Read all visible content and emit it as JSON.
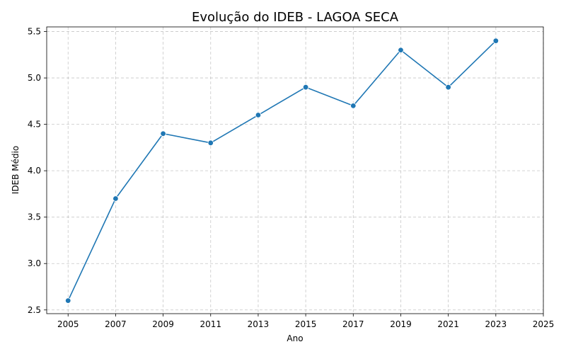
{
  "chart_data": {
    "type": "line",
    "title": "Evolução do IDEB - LAGOA SECA",
    "xlabel": "Ano",
    "ylabel": "IDEB Médio",
    "x": [
      2005,
      2007,
      2009,
      2011,
      2013,
      2015,
      2017,
      2019,
      2021,
      2023
    ],
    "series": [
      {
        "values": [
          2.6,
          3.7,
          4.4,
          4.3,
          4.6,
          4.9,
          4.7,
          5.3,
          4.9,
          5.4
        ],
        "color": "#1f77b4",
        "marker": "circle"
      }
    ],
    "xticks": [
      "2005",
      "2007",
      "2009",
      "2011",
      "2013",
      "2015",
      "2017",
      "2019",
      "2021",
      "2023",
      "2025"
    ],
    "yticks": [
      "2.5",
      "3.0",
      "3.5",
      "4.0",
      "4.5",
      "5.0",
      "5.5"
    ],
    "xlim": [
      2004.1,
      2025
    ],
    "ylim": [
      2.46,
      5.55
    ],
    "grid": true,
    "grid_style": "dashed",
    "legend": false
  }
}
